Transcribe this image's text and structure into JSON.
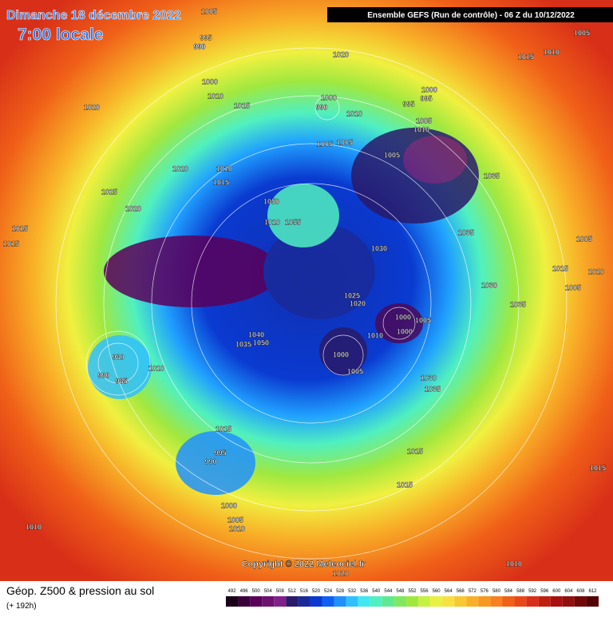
{
  "header": {
    "title": "Dimanche 18 décembre 2022",
    "subtitle": "7:00 locale",
    "run": "Ensemble GEFS  (Run de contrôle)  -  06 Z du 10/12/2022"
  },
  "copyright": "Copyright © 2022 Meteociel.fr",
  "footer": {
    "title": "Géop. Z500 & pression au sol",
    "lead": "(+ 192h)"
  },
  "legend": {
    "ticks": [
      492,
      496,
      500,
      504,
      508,
      512,
      516,
      520,
      524,
      528,
      532,
      536,
      540,
      544,
      548,
      552,
      556,
      560,
      564,
      568,
      572,
      576,
      580,
      584,
      588,
      592,
      596,
      600,
      604,
      608,
      612
    ],
    "colors": [
      "#1a001a",
      "#3a003a",
      "#5a005a",
      "#6e1070",
      "#80208a",
      "#2a1a6a",
      "#1a2a9a",
      "#0a3ad0",
      "#1060f0",
      "#2090ff",
      "#30c0ff",
      "#40e8f0",
      "#50f0c0",
      "#60e890",
      "#80e860",
      "#a0e840",
      "#c8f040",
      "#e8f040",
      "#f8e040",
      "#f8c830",
      "#f8b028",
      "#f89820",
      "#f88020",
      "#f06018",
      "#e84818",
      "#d83018",
      "#c02010",
      "#a81010",
      "#901010",
      "#700808",
      "#500000"
    ]
  },
  "isobars": [
    1005,
    995,
    990,
    1000,
    1010,
    1015,
    1020,
    1020,
    1015,
    1010,
    1005,
    1000,
    995,
    995,
    1000,
    990,
    1010,
    1005,
    1010,
    1005,
    1005,
    1005,
    1035,
    1020,
    1010,
    1015,
    1025,
    1020,
    1050,
    1010,
    1055,
    1015,
    1015,
    1035,
    1005,
    1030,
    1015,
    1010,
    1030,
    1005,
    1035,
    1025,
    1020,
    1000,
    1005,
    1000,
    1010,
    1040,
    1050,
    1035,
    1000,
    1005,
    980,
    1010,
    990,
    985,
    1030,
    1035,
    1015,
    995,
    990,
    1015,
    1015,
    1000,
    1005,
    1010,
    1010,
    1015,
    1010,
    1020
  ]
}
